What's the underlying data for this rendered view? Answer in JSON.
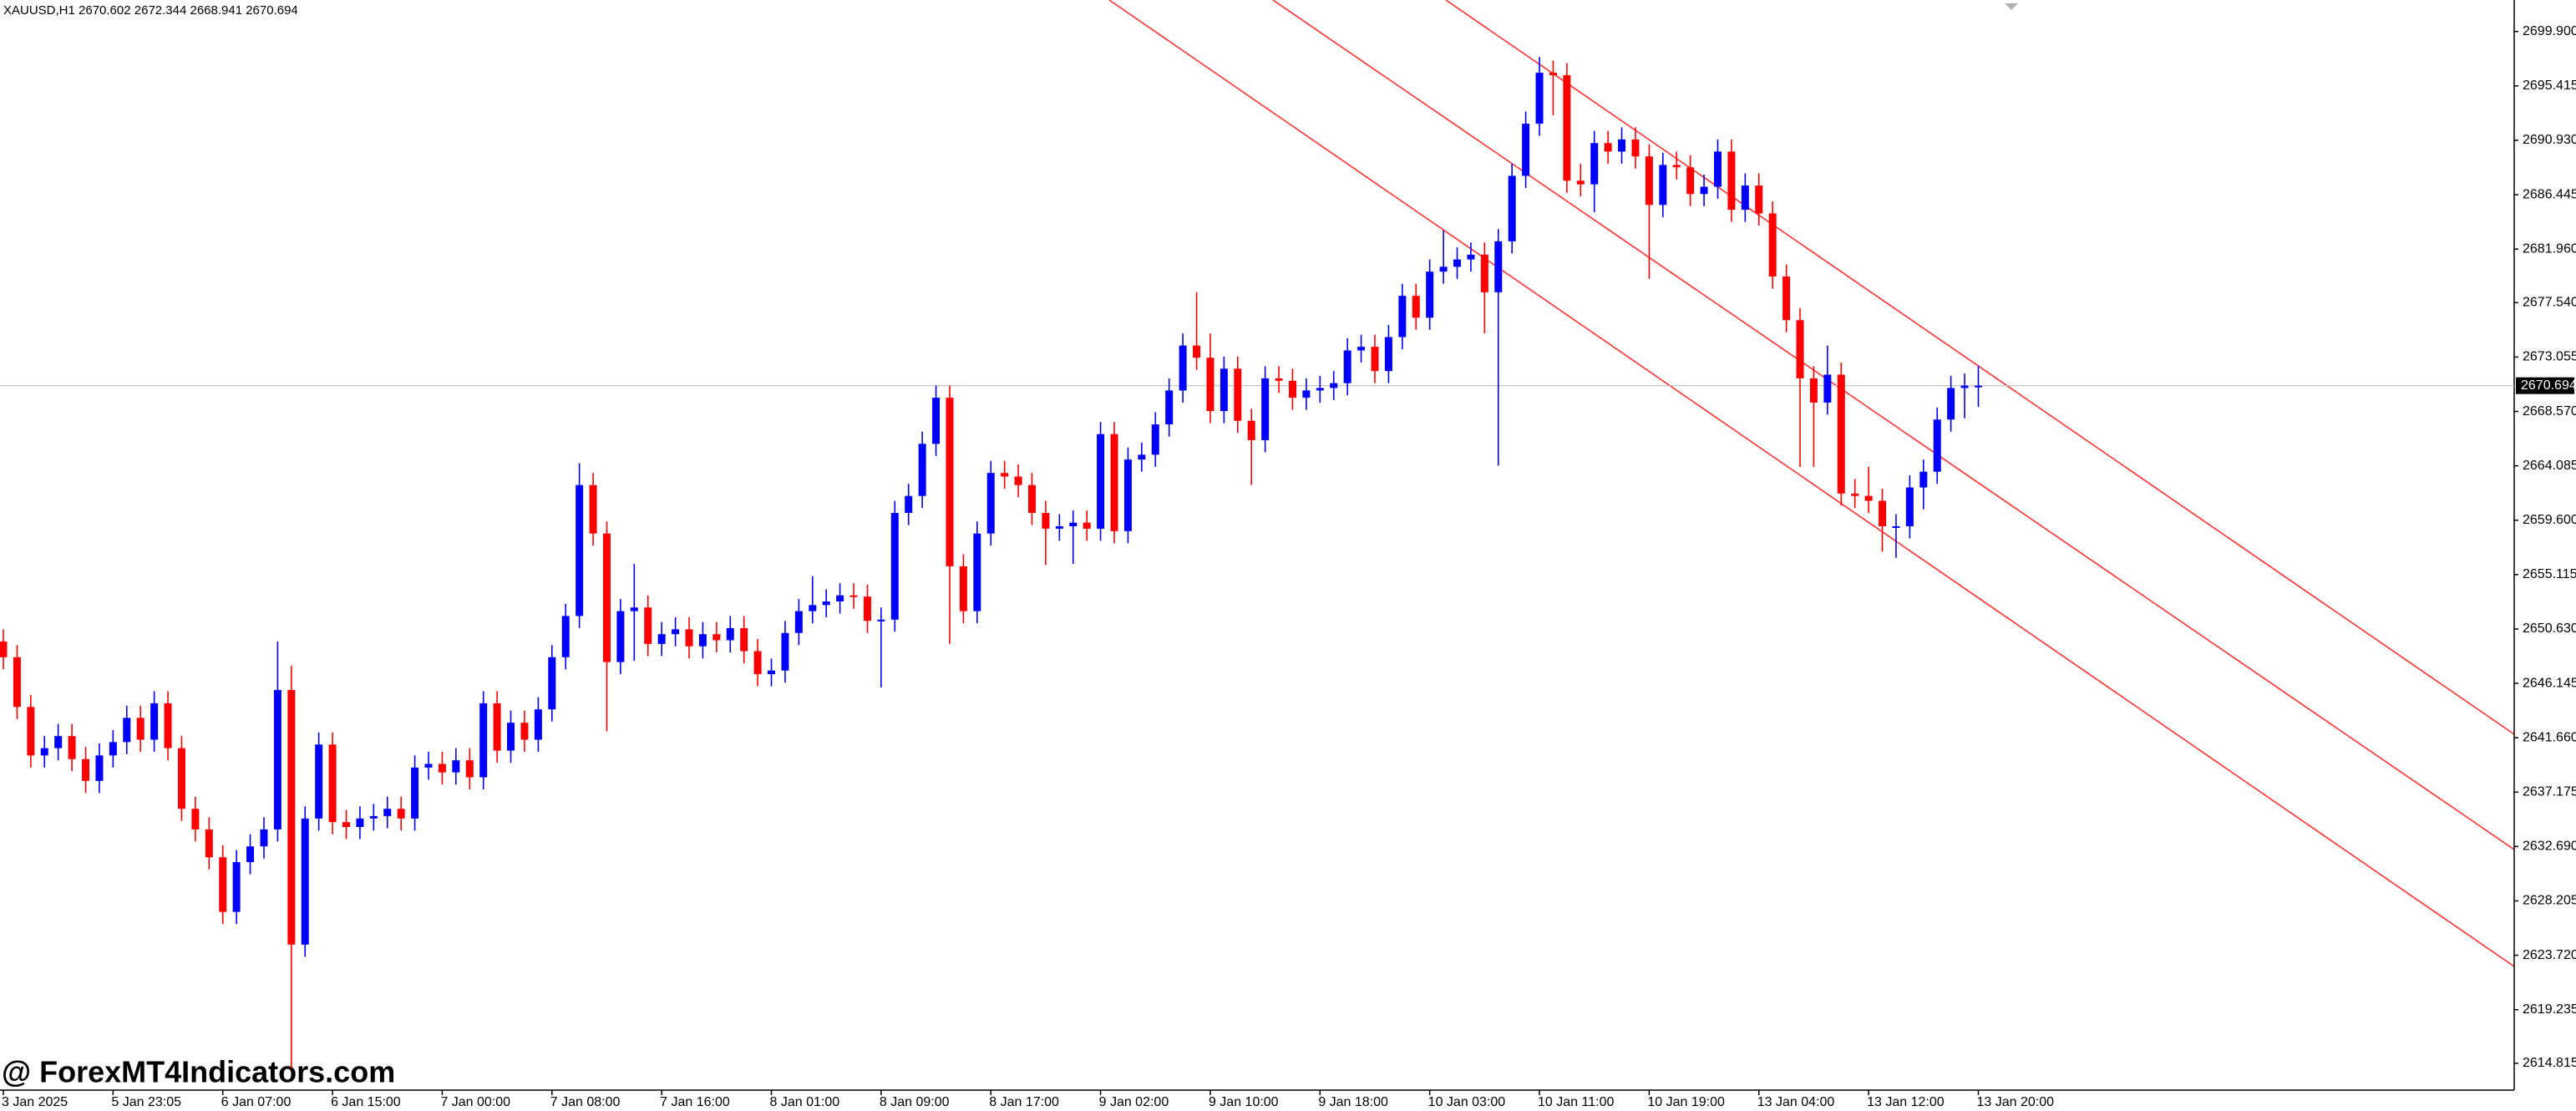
{
  "chart_data": {
    "type": "candlestick",
    "title": "XAUUSD,H1  2670.602 2672.344 2668.941 2670.694",
    "watermark": "@ ForexMT4Indicators.com",
    "bull_color": "#0000ff",
    "bear_color": "#ff0000",
    "current_price": {
      "value": 2670.694,
      "label": "2670.694"
    },
    "ylim": [
      2612.6,
      2702.5
    ],
    "yticks": [
      {
        "value": 2699.9,
        "label": "2699.900"
      },
      {
        "value": 2695.415,
        "label": "2695.415"
      },
      {
        "value": 2690.93,
        "label": "2690.930"
      },
      {
        "value": 2686.445,
        "label": "2686.445"
      },
      {
        "value": 2681.96,
        "label": "2681.960"
      },
      {
        "value": 2677.54,
        "label": "2677.540"
      },
      {
        "value": 2673.055,
        "label": "2673.055"
      },
      {
        "value": 2668.57,
        "label": "2668.570"
      },
      {
        "value": 2664.085,
        "label": "2664.085"
      },
      {
        "value": 2659.6,
        "label": "2659.600"
      },
      {
        "value": 2655.115,
        "label": "2655.115"
      },
      {
        "value": 2650.63,
        "label": "2650.630"
      },
      {
        "value": 2646.145,
        "label": "2646.145"
      },
      {
        "value": 2641.66,
        "label": "2641.660"
      },
      {
        "value": 2637.175,
        "label": "2637.175"
      },
      {
        "value": 2632.69,
        "label": "2632.690"
      },
      {
        "value": 2628.205,
        "label": "2628.205"
      },
      {
        "value": 2623.72,
        "label": "2623.720"
      },
      {
        "value": 2619.235,
        "label": "2619.235"
      },
      {
        "value": 2614.815,
        "label": "2614.815"
      }
    ],
    "categories": [
      "3 Jan 2025",
      null,
      null,
      null,
      null,
      null,
      null,
      null,
      "5 Jan 23:05",
      null,
      null,
      null,
      null,
      null,
      null,
      null,
      "6 Jan 07:00",
      null,
      null,
      null,
      null,
      null,
      null,
      null,
      "6 Jan 15:00",
      null,
      null,
      null,
      null,
      null,
      null,
      null,
      "7 Jan 00:00",
      null,
      null,
      null,
      null,
      null,
      null,
      null,
      "7 Jan 08:00",
      null,
      null,
      null,
      null,
      null,
      null,
      null,
      "7 Jan 16:00",
      null,
      null,
      null,
      null,
      null,
      null,
      null,
      "8 Jan 01:00",
      null,
      null,
      null,
      null,
      null,
      null,
      null,
      "8 Jan 09:00",
      null,
      null,
      null,
      null,
      null,
      null,
      null,
      "8 Jan 17:00",
      null,
      null,
      null,
      null,
      null,
      null,
      null,
      "9 Jan 02:00",
      null,
      null,
      null,
      null,
      null,
      null,
      null,
      "9 Jan 10:00",
      null,
      null,
      null,
      null,
      null,
      null,
      null,
      "9 Jan 18:00",
      null,
      null,
      null,
      null,
      null,
      null,
      null,
      "10 Jan 03:00",
      null,
      null,
      null,
      null,
      null,
      null,
      null,
      "10 Jan 11:00",
      null,
      null,
      null,
      null,
      null,
      null,
      null,
      "10 Jan 19:00",
      null,
      null,
      null,
      null,
      null,
      null,
      null,
      "13 Jan 04:00",
      null,
      null,
      null,
      null,
      null,
      null,
      null,
      "13 Jan 12:00",
      null,
      null,
      null,
      null,
      null,
      null,
      null,
      "13 Jan 20:00"
    ],
    "ohlc": [
      [
        2649.6,
        2650.6,
        2647.3,
        2648.3
      ],
      [
        2648.3,
        2649.3,
        2643.2,
        2644.2
      ],
      [
        2644.2,
        2645.2,
        2639.2,
        2640.2
      ],
      [
        2640.2,
        2641.8,
        2639.2,
        2640.8
      ],
      [
        2640.8,
        2642.8,
        2639.8,
        2641.8
      ],
      [
        2641.8,
        2642.8,
        2638.9,
        2639.9
      ],
      [
        2639.9,
        2640.9,
        2637.1,
        2638.1
      ],
      [
        2638.1,
        2641.2,
        2637.1,
        2640.2
      ],
      [
        2640.2,
        2642.3,
        2639.2,
        2641.3
      ],
      [
        2641.3,
        2644.3,
        2640.3,
        2643.3
      ],
      [
        2643.3,
        2644.3,
        2640.5,
        2641.5
      ],
      [
        2641.5,
        2645.5,
        2640.5,
        2644.5
      ],
      [
        2644.5,
        2645.5,
        2639.8,
        2640.8
      ],
      [
        2640.8,
        2641.8,
        2634.8,
        2635.8
      ],
      [
        2635.8,
        2636.8,
        2633.1,
        2634.1
      ],
      [
        2634.1,
        2635.1,
        2630.8,
        2631.8
      ],
      [
        2631.8,
        2632.8,
        2626.3,
        2627.3
      ],
      [
        2627.3,
        2632.4,
        2626.3,
        2631.4
      ],
      [
        2631.4,
        2633.7,
        2630.4,
        2632.7
      ],
      [
        2632.7,
        2635.1,
        2631.7,
        2634.1
      ],
      [
        2634.1,
        2649.6,
        2633.1,
        2645.6
      ],
      [
        2645.6,
        2647.6,
        2614.4,
        2624.6
      ],
      [
        2624.6,
        2636.0,
        2623.6,
        2635.0
      ],
      [
        2635.0,
        2642.1,
        2634.0,
        2641.1
      ],
      [
        2641.1,
        2642.1,
        2633.7,
        2634.7
      ],
      [
        2634.7,
        2635.7,
        2633.3,
        2634.3
      ],
      [
        2634.3,
        2636.0,
        2633.3,
        2635.0
      ],
      [
        2635.0,
        2636.2,
        2634.0,
        2635.2
      ],
      [
        2635.2,
        2636.8,
        2634.2,
        2635.8
      ],
      [
        2635.8,
        2636.8,
        2634.0,
        2635.0
      ],
      [
        2635.0,
        2640.2,
        2634.0,
        2639.2
      ],
      [
        2639.2,
        2640.5,
        2638.2,
        2639.5
      ],
      [
        2639.5,
        2640.5,
        2637.8,
        2638.8
      ],
      [
        2638.8,
        2640.8,
        2637.8,
        2639.8
      ],
      [
        2639.8,
        2640.8,
        2637.4,
        2638.4
      ],
      [
        2638.4,
        2645.5,
        2637.4,
        2644.5
      ],
      [
        2644.5,
        2645.5,
        2639.6,
        2640.6
      ],
      [
        2640.6,
        2643.9,
        2639.6,
        2642.9
      ],
      [
        2642.9,
        2643.9,
        2640.5,
        2641.5
      ],
      [
        2641.5,
        2645.0,
        2640.5,
        2644.0
      ],
      [
        2644.0,
        2649.3,
        2643.0,
        2648.3
      ],
      [
        2648.3,
        2652.7,
        2647.3,
        2651.7
      ],
      [
        2651.7,
        2664.3,
        2650.7,
        2662.5
      ],
      [
        2662.5,
        2663.5,
        2657.5,
        2658.5
      ],
      [
        2658.5,
        2659.5,
        2642.2,
        2647.9
      ],
      [
        2647.9,
        2653.1,
        2646.9,
        2652.1
      ],
      [
        2652.1,
        2656.0,
        2648.0,
        2652.4
      ],
      [
        2652.4,
        2653.4,
        2648.4,
        2649.4
      ],
      [
        2649.4,
        2651.2,
        2648.4,
        2650.2
      ],
      [
        2650.2,
        2651.6,
        2649.2,
        2650.6
      ],
      [
        2650.6,
        2651.6,
        2648.2,
        2649.2
      ],
      [
        2649.2,
        2651.2,
        2648.2,
        2650.2
      ],
      [
        2650.2,
        2651.2,
        2648.7,
        2649.7
      ],
      [
        2649.7,
        2651.7,
        2648.7,
        2650.7
      ],
      [
        2650.7,
        2651.7,
        2647.8,
        2648.8
      ],
      [
        2648.8,
        2649.8,
        2645.9,
        2646.9
      ],
      [
        2646.9,
        2648.2,
        2645.9,
        2647.2
      ],
      [
        2647.2,
        2651.3,
        2646.2,
        2650.3
      ],
      [
        2650.3,
        2653.1,
        2649.3,
        2652.1
      ],
      [
        2652.1,
        2655.0,
        2651.1,
        2652.6
      ],
      [
        2652.6,
        2653.9,
        2651.6,
        2652.9
      ],
      [
        2652.9,
        2654.4,
        2651.9,
        2653.4
      ],
      [
        2653.4,
        2654.4,
        2652.3,
        2653.3
      ],
      [
        2653.3,
        2654.3,
        2650.3,
        2651.3
      ],
      [
        2651.3,
        2652.4,
        2645.8,
        2651.4
      ],
      [
        2651.4,
        2661.2,
        2650.4,
        2660.2
      ],
      [
        2660.2,
        2662.6,
        2659.2,
        2661.6
      ],
      [
        2661.6,
        2666.9,
        2660.6,
        2665.9
      ],
      [
        2665.9,
        2670.7,
        2664.9,
        2669.7
      ],
      [
        2669.7,
        2670.7,
        2649.4,
        2655.8
      ],
      [
        2655.8,
        2656.8,
        2651.1,
        2652.1
      ],
      [
        2652.1,
        2659.5,
        2651.1,
        2658.5
      ],
      [
        2658.5,
        2664.5,
        2657.5,
        2663.5
      ],
      [
        2663.5,
        2664.5,
        2662.2,
        2663.2
      ],
      [
        2663.2,
        2664.2,
        2661.5,
        2662.5
      ],
      [
        2662.5,
        2663.5,
        2659.2,
        2660.2
      ],
      [
        2660.2,
        2661.2,
        2655.9,
        2658.9
      ],
      [
        2658.9,
        2660.1,
        2657.9,
        2659.1
      ],
      [
        2659.1,
        2660.4,
        2656.0,
        2659.4
      ],
      [
        2659.4,
        2660.4,
        2657.9,
        2658.9
      ],
      [
        2658.9,
        2667.7,
        2657.9,
        2666.7
      ],
      [
        2666.7,
        2667.7,
        2657.7,
        2658.7
      ],
      [
        2658.7,
        2665.6,
        2657.7,
        2664.6
      ],
      [
        2664.6,
        2666.0,
        2663.6,
        2665.0
      ],
      [
        2665.0,
        2668.5,
        2664.0,
        2667.5
      ],
      [
        2667.5,
        2671.3,
        2666.5,
        2670.3
      ],
      [
        2670.3,
        2675.0,
        2669.3,
        2674.0
      ],
      [
        2674.0,
        2678.4,
        2672.0,
        2673.0
      ],
      [
        2673.0,
        2675.0,
        2667.6,
        2668.6
      ],
      [
        2668.6,
        2673.1,
        2667.6,
        2672.1
      ],
      [
        2672.1,
        2673.1,
        2666.8,
        2667.8
      ],
      [
        2667.8,
        2668.8,
        2662.5,
        2666.2
      ],
      [
        2666.2,
        2672.3,
        2665.2,
        2671.3
      ],
      [
        2671.3,
        2672.3,
        2670.1,
        2671.1
      ],
      [
        2671.1,
        2672.1,
        2668.7,
        2669.7
      ],
      [
        2669.7,
        2671.3,
        2668.7,
        2670.3
      ],
      [
        2670.3,
        2671.5,
        2669.3,
        2670.5
      ],
      [
        2670.5,
        2671.9,
        2669.5,
        2670.9
      ],
      [
        2670.9,
        2674.6,
        2669.9,
        2673.6
      ],
      [
        2673.6,
        2674.9,
        2672.6,
        2673.9
      ],
      [
        2673.9,
        2674.9,
        2670.9,
        2671.9
      ],
      [
        2671.9,
        2675.7,
        2670.9,
        2674.7
      ],
      [
        2674.7,
        2679.1,
        2673.7,
        2678.1
      ],
      [
        2678.1,
        2679.1,
        2675.3,
        2676.3
      ],
      [
        2676.3,
        2681.1,
        2675.3,
        2680.1
      ],
      [
        2680.1,
        2683.5,
        2679.1,
        2680.5
      ],
      [
        2680.5,
        2682.1,
        2679.5,
        2681.1
      ],
      [
        2681.1,
        2682.5,
        2680.1,
        2681.5
      ],
      [
        2681.5,
        2682.5,
        2675.0,
        2678.4
      ],
      [
        2678.4,
        2683.6,
        2664.1,
        2682.6
      ],
      [
        2682.6,
        2689.0,
        2681.6,
        2688.0
      ],
      [
        2688.0,
        2693.3,
        2687.0,
        2692.3
      ],
      [
        2692.3,
        2697.8,
        2691.3,
        2696.5
      ],
      [
        2696.5,
        2697.5,
        2693.0,
        2696.3
      ],
      [
        2696.3,
        2697.3,
        2686.6,
        2687.6
      ],
      [
        2687.6,
        2689.0,
        2686.3,
        2687.3
      ],
      [
        2687.3,
        2691.7,
        2685.0,
        2690.7
      ],
      [
        2690.7,
        2691.7,
        2689.0,
        2690.0
      ],
      [
        2690.0,
        2692.0,
        2689.0,
        2691.0
      ],
      [
        2691.0,
        2692.0,
        2688.6,
        2689.6
      ],
      [
        2689.6,
        2690.6,
        2679.5,
        2685.6
      ],
      [
        2685.6,
        2689.9,
        2684.6,
        2688.9
      ],
      [
        2688.9,
        2690.0,
        2687.7,
        2688.7
      ],
      [
        2688.7,
        2689.7,
        2685.5,
        2686.5
      ],
      [
        2686.5,
        2688.1,
        2685.5,
        2687.1
      ],
      [
        2687.1,
        2691.0,
        2686.1,
        2690.0
      ],
      [
        2690.0,
        2691.0,
        2684.2,
        2685.2
      ],
      [
        2685.2,
        2688.2,
        2684.2,
        2687.2
      ],
      [
        2687.2,
        2688.2,
        2683.9,
        2684.9
      ],
      [
        2684.9,
        2685.9,
        2678.7,
        2679.7
      ],
      [
        2679.7,
        2680.7,
        2675.1,
        2676.1
      ],
      [
        2676.1,
        2677.1,
        2664.0,
        2671.3
      ],
      [
        2671.3,
        2672.3,
        2664.0,
        2669.3
      ],
      [
        2669.3,
        2674.0,
        2668.3,
        2671.6
      ],
      [
        2671.6,
        2672.6,
        2660.8,
        2661.8
      ],
      [
        2661.8,
        2663.0,
        2660.6,
        2661.6
      ],
      [
        2661.6,
        2664.0,
        2660.2,
        2661.2
      ],
      [
        2661.2,
        2662.2,
        2657.0,
        2659.1
      ],
      [
        2659.1,
        2660.1,
        2656.5,
        2659.1
      ],
      [
        2659.1,
        2663.3,
        2658.1,
        2662.3
      ],
      [
        2662.3,
        2664.6,
        2660.5,
        2663.6
      ],
      [
        2663.6,
        2668.9,
        2662.6,
        2667.9
      ],
      [
        2667.9,
        2671.5,
        2666.9,
        2670.5
      ],
      [
        2670.5,
        2671.7,
        2668.0,
        2670.7
      ],
      [
        2670.602,
        2672.344,
        2668.941,
        2670.694
      ]
    ]
  }
}
